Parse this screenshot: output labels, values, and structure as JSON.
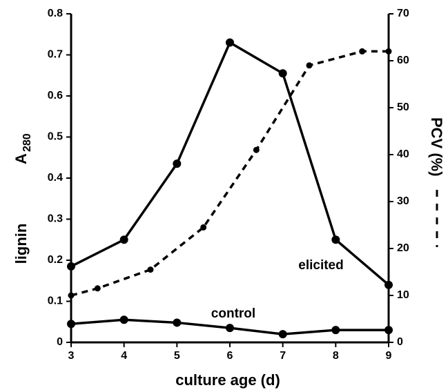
{
  "chart_data": {
    "type": "line",
    "xlabel": "culture age (d)",
    "ylabel": {
      "text": "lignin",
      "measure": "A",
      "subscript": "280"
    },
    "y2label": "PCV (%)",
    "xlim": [
      3,
      9
    ],
    "xticks": [
      3,
      4,
      5,
      6,
      7,
      8,
      9
    ],
    "ylim": [
      0,
      0.8
    ],
    "yticks": [
      0,
      0.1,
      0.2,
      0.3,
      0.4,
      0.5,
      0.6,
      0.7,
      0.8
    ],
    "y2lim": [
      0,
      70
    ],
    "y2ticks": [
      0,
      10,
      20,
      30,
      40,
      50,
      60,
      70
    ],
    "annotations": [
      "elicited",
      "control"
    ],
    "series": [
      {
        "name": "elicited",
        "color": "#000000",
        "dash": false,
        "x": [
          3,
          4,
          5,
          6,
          7,
          8,
          9
        ],
        "values": [
          0.185,
          0.25,
          0.435,
          0.73,
          0.655,
          0.25,
          0.14
        ]
      },
      {
        "name": "control",
        "color": "#000000",
        "dash": false,
        "x": [
          3,
          4,
          5,
          6,
          7,
          8,
          9
        ],
        "values": [
          0.045,
          0.055,
          0.048,
          0.035,
          0.02,
          0.03,
          0.03
        ]
      },
      {
        "name": "PCV (%)",
        "color": "#000000",
        "dash": true,
        "axis": "y2",
        "x": [
          3,
          3.5,
          4.5,
          5.5,
          6.5,
          7.5,
          8.5,
          9
        ],
        "values": [
          10,
          11.5,
          15.5,
          24.5,
          41,
          59,
          62,
          62
        ]
      }
    ]
  }
}
